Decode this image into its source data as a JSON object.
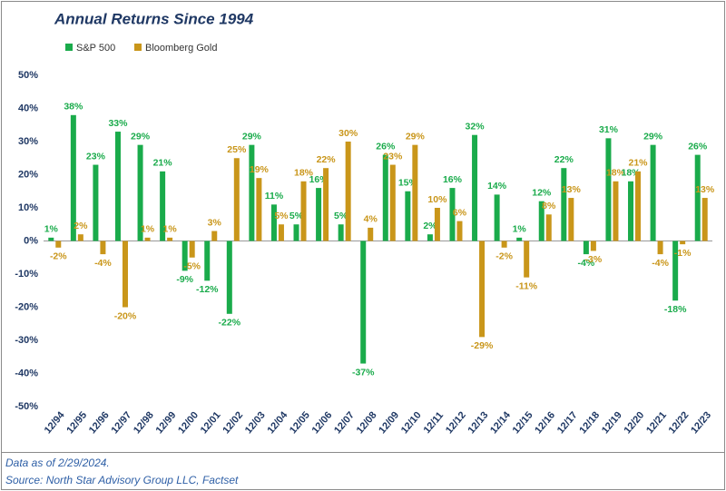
{
  "chart_data": {
    "type": "bar",
    "title": "Annual Returns Since 1994",
    "categories": [
      "12/94",
      "12/95",
      "12/96",
      "12/97",
      "12/98",
      "12/99",
      "12/00",
      "12/01",
      "12/02",
      "12/03",
      "12/04",
      "12/05",
      "12/06",
      "12/07",
      "12/08",
      "12/09",
      "12/10",
      "12/11",
      "12/12",
      "12/13",
      "12/14",
      "12/15",
      "12/16",
      "12/17",
      "12/18",
      "12/19",
      "12/20",
      "12/21",
      "12/22",
      "12/23"
    ],
    "series": [
      {
        "name": "S&P 500",
        "color": "#1aab4b",
        "values": [
          1,
          38,
          23,
          33,
          29,
          21,
          -9,
          -12,
          -22,
          29,
          11,
          5,
          16,
          5,
          -37,
          26,
          15,
          2,
          16,
          32,
          14,
          1,
          12,
          22,
          -4,
          31,
          18,
          29,
          -18,
          26
        ],
        "value_labels": [
          "1%",
          "38%",
          "23%",
          "33%",
          "29%",
          "21%",
          "-9%",
          "-12%",
          "-22%",
          "29%",
          "11%",
          "5%",
          "16%",
          "5%",
          "-37%",
          "26%",
          "15%",
          "2%",
          "16%",
          "32%",
          "14%",
          "1%",
          "12%",
          "22%",
          "-4%",
          "31%",
          "18%",
          "29%",
          "-18%",
          "26%"
        ]
      },
      {
        "name": "Bloomberg Gold",
        "color": "#c9961a",
        "values": [
          -2,
          2,
          -4,
          -20,
          1,
          1,
          -5,
          3,
          25,
          19,
          5,
          18,
          22,
          30,
          4,
          23,
          29,
          10,
          6,
          -29,
          -2,
          -11,
          8,
          13,
          -3,
          18,
          21,
          -4,
          -1,
          13
        ],
        "value_labels": [
          "-2%",
          "2%",
          "-4%",
          "-20%",
          "1%",
          "1%",
          "-5%",
          "3%",
          "25%",
          "19%",
          "5%",
          "18%",
          "22%",
          "30%",
          "4%",
          "23%",
          "29%",
          "10%",
          "6%",
          "-29%",
          "-2%",
          "-11%",
          "8%",
          "13%",
          "-3%",
          "18%",
          "21%",
          "-4%",
          "-1%",
          "13%"
        ]
      }
    ],
    "ylim": [
      -50,
      50
    ],
    "yticks": [
      {
        "value": -50,
        "label": "-50%"
      },
      {
        "value": -40,
        "label": "-40%"
      },
      {
        "value": -30,
        "label": "-30%"
      },
      {
        "value": -20,
        "label": "-20%"
      },
      {
        "value": -10,
        "label": "-10%"
      },
      {
        "value": 0,
        "label": "0%"
      },
      {
        "value": 10,
        "label": "10%"
      },
      {
        "value": 20,
        "label": "20%"
      },
      {
        "value": 30,
        "label": "30%"
      },
      {
        "value": 40,
        "label": "40%"
      },
      {
        "value": 50,
        "label": "50%"
      }
    ],
    "grid": false
  },
  "footer": {
    "note": "Data as of 2/29/2024.",
    "source": "Source: North Star Advisory Group LLC, Factset"
  }
}
